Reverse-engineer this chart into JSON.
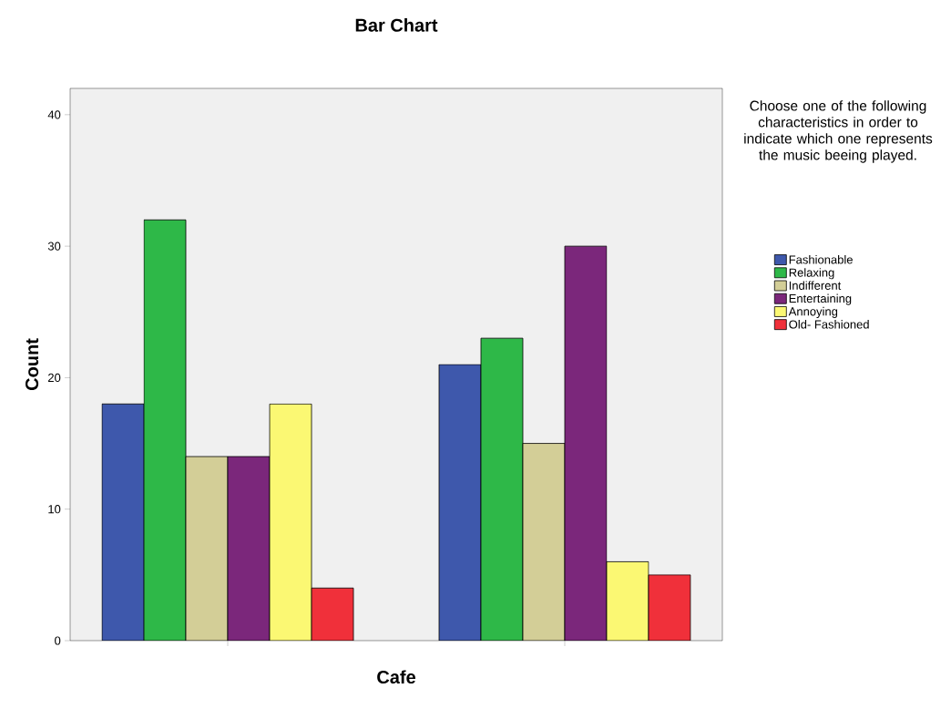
{
  "chart_data": {
    "type": "bar",
    "title": "Bar Chart",
    "xlabel": "Cafe",
    "ylabel": "Count",
    "legend_title": "Choose one of the following characteristics in order to indicate which one represents the music beeing played.",
    "categories": [
      null,
      null
    ],
    "series": [
      {
        "name": "Fashionable",
        "color": "#3e58ac",
        "values": [
          18,
          21
        ]
      },
      {
        "name": "Relaxing",
        "color": "#2eb848",
        "values": [
          32,
          23
        ]
      },
      {
        "name": "Indifferent",
        "color": "#d3ce97",
        "values": [
          14,
          15
        ]
      },
      {
        "name": "Entertaining",
        "color": "#7b277b",
        "values": [
          14,
          30
        ]
      },
      {
        "name": "Annoying",
        "color": "#fbf873",
        "values": [
          18,
          6
        ]
      },
      {
        "name": "Old- Fashioned",
        "color": "#f0303a",
        "values": [
          4,
          5
        ]
      }
    ],
    "ylim": [
      0,
      42
    ],
    "yticks": [
      0,
      10,
      20,
      30,
      40
    ],
    "grid": false,
    "legend": "right"
  }
}
